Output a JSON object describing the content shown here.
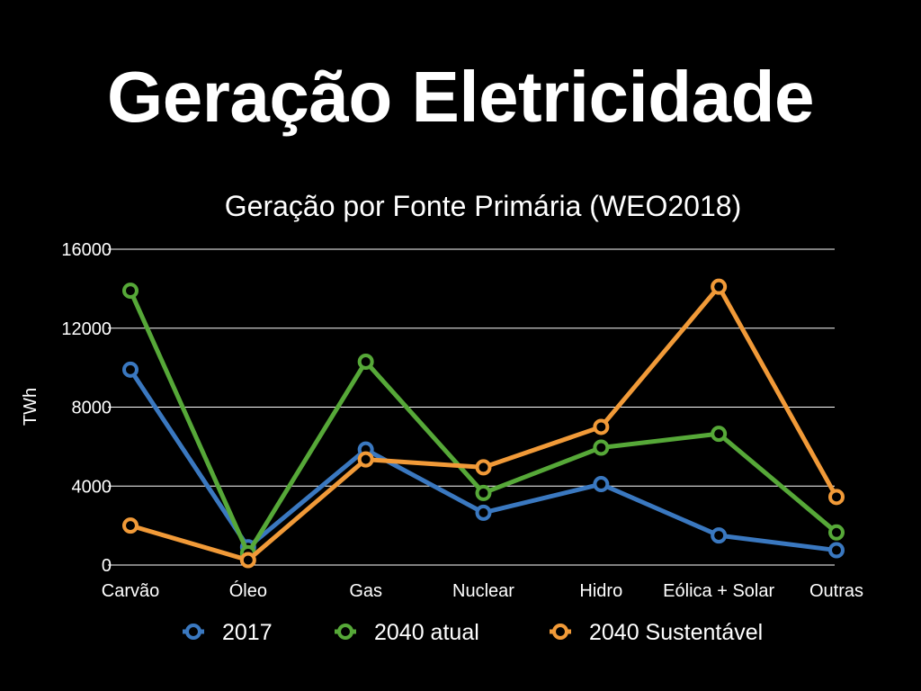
{
  "slide": {
    "title": "Geração Eletricidade"
  },
  "chart_data": {
    "type": "line",
    "title": "Geração por Fonte Primária (WEO2018)",
    "xlabel": "",
    "ylabel": "TWh",
    "ylim": [
      0,
      16000
    ],
    "yticks": [
      0,
      4000,
      8000,
      12000,
      16000
    ],
    "grid": true,
    "legend": "bottom",
    "categories": [
      "Carvão",
      "Óleo",
      "Gas",
      "Nuclear",
      "Hidro",
      "Eólica + Solar",
      "Outras"
    ],
    "series": [
      {
        "name": "2017",
        "color": "#3a78c0",
        "values": [
          9900,
          900,
          5850,
          2650,
          4100,
          1500,
          750
        ]
      },
      {
        "name": "2040 atual",
        "color": "#56a838",
        "values": [
          13900,
          600,
          10300,
          3650,
          5950,
          6650,
          1650
        ]
      },
      {
        "name": "2040 Sustentável",
        "color": "#f19a38",
        "values": [
          2000,
          250,
          5350,
          4950,
          7000,
          14100,
          3450
        ]
      }
    ]
  }
}
